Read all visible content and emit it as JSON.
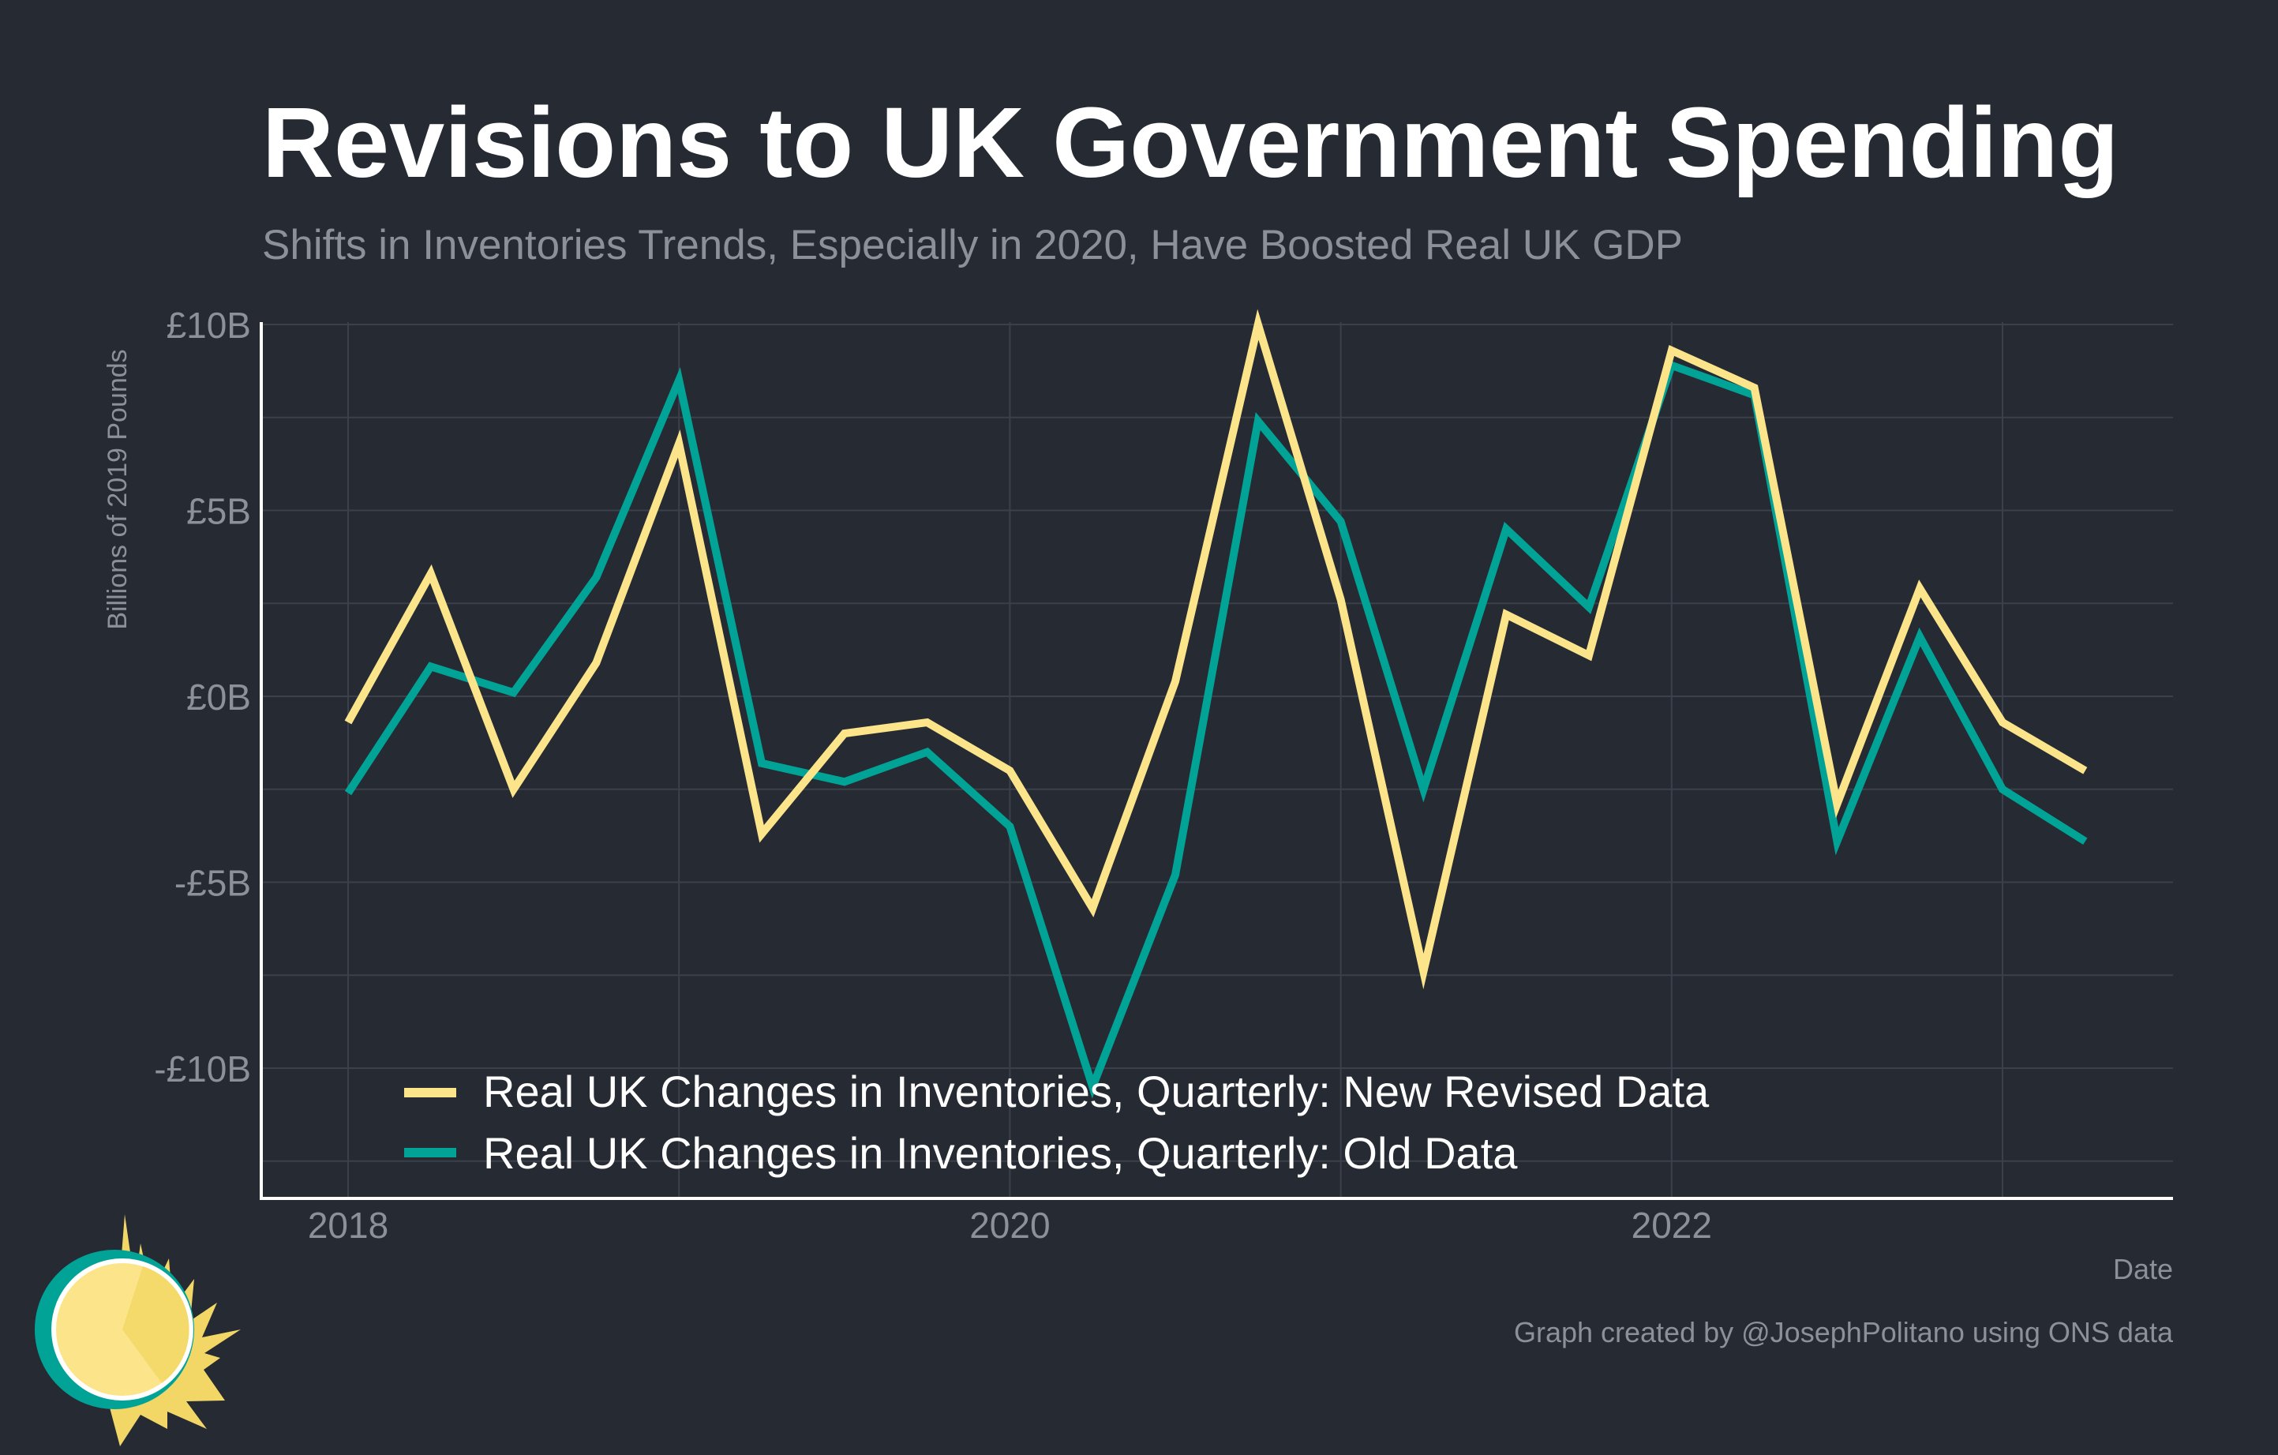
{
  "colors": {
    "background": "#252a33",
    "grid": "#3b404a",
    "axis": "#ffffff",
    "text_muted": "#8c9099",
    "new_series": "#fce48a",
    "old_series": "#00a396"
  },
  "chart_data": {
    "type": "line",
    "title": "Revisions to UK Government Spending",
    "subtitle": "Shifts in Inventories Trends, Especially in 2020, Have Boosted Real UK GDP",
    "xlabel": "Date",
    "ylabel": "Billions of 2019 Pounds",
    "x": [
      "2018-Q1",
      "2018-Q2",
      "2018-Q3",
      "2018-Q4",
      "2019-Q1",
      "2019-Q2",
      "2019-Q3",
      "2019-Q4",
      "2020-Q1",
      "2020-Q2",
      "2020-Q3",
      "2020-Q4",
      "2021-Q1",
      "2021-Q2",
      "2021-Q3",
      "2021-Q4",
      "2022-Q1",
      "2022-Q2",
      "2022-Q3",
      "2022-Q4",
      "2023-Q1",
      "2023-Q2"
    ],
    "x_ticks": [
      "2018",
      "2020",
      "2022"
    ],
    "y_ticks": [
      "£10B",
      "£5B",
      "£0B",
      "-£5B",
      "-£10B"
    ],
    "ylim": [
      -13.5,
      10.2
    ],
    "grid": true,
    "legend_position": "bottom-left",
    "series": [
      {
        "name": "Real UK Changes in Inventories, Quarterly: New Revised Data",
        "values": [
          -0.7,
          3.3,
          -2.5,
          0.9,
          6.8,
          -3.7,
          -1.0,
          -0.7,
          -2.0,
          -5.7,
          0.4,
          10.0,
          2.6,
          -7.4,
          2.2,
          1.1,
          9.3,
          8.3,
          -2.9,
          2.9,
          -0.7,
          -2.0
        ]
      },
      {
        "name": "Real UK Changes in Inventories, Quarterly: Old Data",
        "values": [
          -2.6,
          0.8,
          0.1,
          3.2,
          8.5,
          -1.8,
          -2.3,
          -1.5,
          -3.5,
          -10.5,
          -4.8,
          7.4,
          4.7,
          -2.5,
          4.5,
          2.4,
          8.9,
          8.1,
          -3.9,
          1.6,
          -2.5,
          -3.9
        ]
      }
    ]
  },
  "credit": "Graph created by @JosephPolitano using ONS data"
}
